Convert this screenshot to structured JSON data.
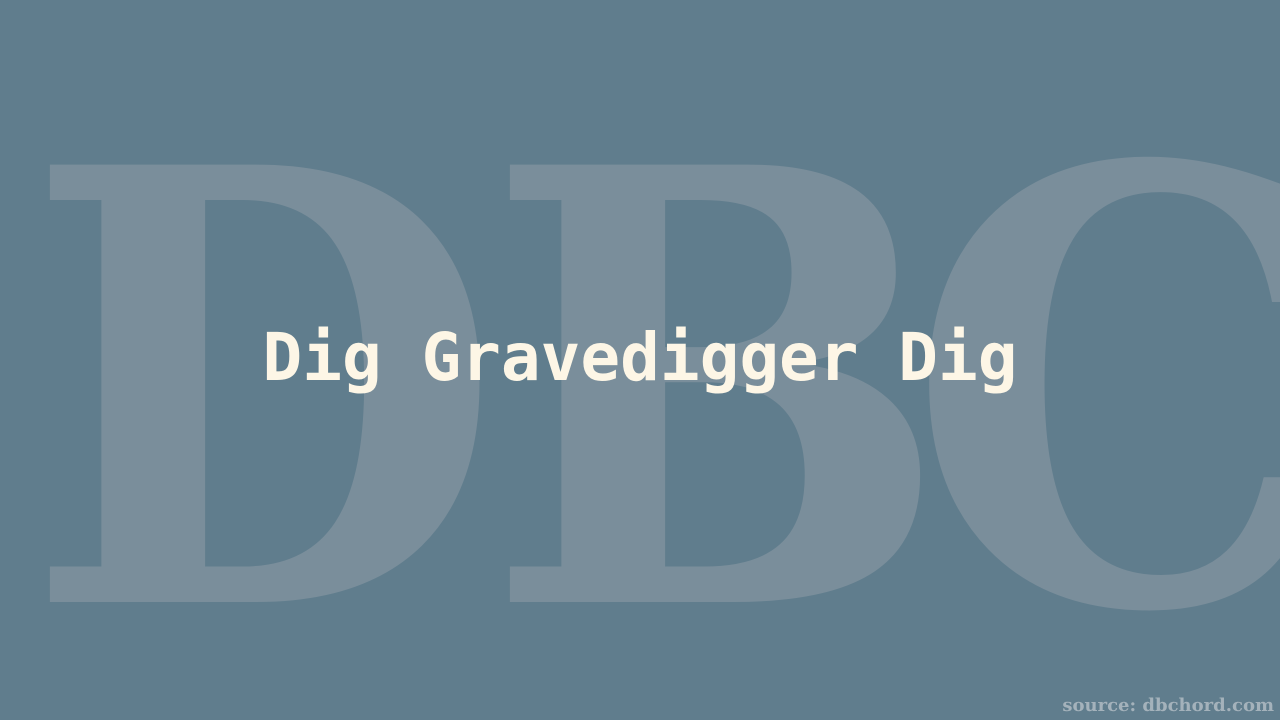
{
  "watermark": {
    "letters": [
      "D",
      "B",
      "C"
    ]
  },
  "title": "Dig Gravedigger Dig",
  "source": "source: dbchord.com",
  "colors": {
    "background": "#607d8d",
    "watermark": "#7a8e9b",
    "title": "#fdf6e6",
    "source": "#a4b2bb"
  }
}
